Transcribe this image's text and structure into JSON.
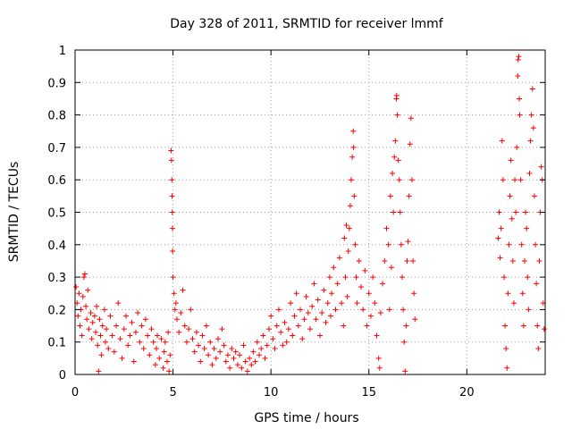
{
  "chart_data": {
    "type": "scatter",
    "title": "Day 328 of 2011, SRMTID for receiver lmmf",
    "xlabel": "GPS time / hours",
    "ylabel": "SRMTID / TECUs",
    "xlim": [
      0,
      24
    ],
    "ylim": [
      0,
      1
    ],
    "xticks": [
      0,
      5,
      10,
      15,
      20
    ],
    "xtick_labels": [
      "0",
      "5",
      "10",
      "15",
      "20"
    ],
    "yticks": [
      0,
      0.1,
      0.2,
      0.3,
      0.4,
      0.5,
      0.6,
      0.7,
      0.8,
      0.9,
      1
    ],
    "ytick_labels": [
      "0",
      "0.1",
      "0.2",
      "0.3",
      "0.4",
      "0.5",
      "0.6",
      "0.7",
      "0.8",
      "0.9",
      "1"
    ],
    "grid": true,
    "marker": "+",
    "color": "#ff0000",
    "series": [
      {
        "name": "SRMTID",
        "points": [
          [
            0.05,
            0.27
          ],
          [
            0.1,
            0.22
          ],
          [
            0.15,
            0.18
          ],
          [
            0.2,
            0.25
          ],
          [
            0.25,
            0.15
          ],
          [
            0.3,
            0.2
          ],
          [
            0.35,
            0.12
          ],
          [
            0.4,
            0.24
          ],
          [
            0.45,
            0.3
          ],
          [
            0.5,
            0.31
          ],
          [
            0.55,
            0.21
          ],
          [
            0.6,
            0.17
          ],
          [
            0.65,
            0.26
          ],
          [
            0.7,
            0.14
          ],
          [
            0.8,
            0.19
          ],
          [
            0.85,
            0.11
          ],
          [
            0.9,
            0.16
          ],
          [
            1.0,
            0.18
          ],
          [
            1.05,
            0.13
          ],
          [
            1.1,
            0.21
          ],
          [
            1.15,
            0.09
          ],
          [
            1.2,
            0.01
          ],
          [
            1.25,
            0.17
          ],
          [
            1.3,
            0.12
          ],
          [
            1.35,
            0.06
          ],
          [
            1.4,
            0.15
          ],
          [
            1.5,
            0.2
          ],
          [
            1.55,
            0.1
          ],
          [
            1.6,
            0.14
          ],
          [
            1.7,
            0.08
          ],
          [
            1.8,
            0.18
          ],
          [
            1.9,
            0.12
          ],
          [
            2.0,
            0.07
          ],
          [
            2.1,
            0.15
          ],
          [
            2.2,
            0.22
          ],
          [
            2.3,
            0.11
          ],
          [
            2.4,
            0.05
          ],
          [
            2.5,
            0.14
          ],
          [
            2.6,
            0.18
          ],
          [
            2.7,
            0.09
          ],
          [
            2.8,
            0.12
          ],
          [
            2.9,
            0.16
          ],
          [
            3.0,
            0.04
          ],
          [
            3.1,
            0.13
          ],
          [
            3.2,
            0.19
          ],
          [
            3.3,
            0.1
          ],
          [
            3.4,
            0.15
          ],
          [
            3.5,
            0.08
          ],
          [
            3.6,
            0.17
          ],
          [
            3.7,
            0.12
          ],
          [
            3.8,
            0.06
          ],
          [
            3.9,
            0.14
          ],
          [
            4.0,
            0.1
          ],
          [
            4.1,
            0.03
          ],
          [
            4.15,
            0.08
          ],
          [
            4.2,
            0.12
          ],
          [
            4.3,
            0.05
          ],
          [
            4.4,
            0.11
          ],
          [
            4.5,
            0.02
          ],
          [
            4.55,
            0.07
          ],
          [
            4.6,
            0.1
          ],
          [
            4.7,
            0.04
          ],
          [
            4.75,
            0.13
          ],
          [
            4.8,
            0.01
          ],
          [
            4.85,
            0.06
          ],
          [
            4.9,
            0.69
          ],
          [
            4.92,
            0.66
          ],
          [
            4.94,
            0.6
          ],
          [
            4.95,
            0.55
          ],
          [
            4.96,
            0.5
          ],
          [
            4.97,
            0.45
          ],
          [
            4.98,
            0.38
          ],
          [
            5.0,
            0.3
          ],
          [
            5.05,
            0.25
          ],
          [
            5.1,
            0.2
          ],
          [
            5.15,
            0.22
          ],
          [
            5.2,
            0.17
          ],
          [
            5.3,
            0.13
          ],
          [
            5.4,
            0.19
          ],
          [
            5.5,
            0.26
          ],
          [
            5.6,
            0.15
          ],
          [
            5.7,
            0.1
          ],
          [
            5.8,
            0.14
          ],
          [
            5.9,
            0.2
          ],
          [
            6.0,
            0.11
          ],
          [
            6.1,
            0.07
          ],
          [
            6.2,
            0.13
          ],
          [
            6.3,
            0.09
          ],
          [
            6.4,
            0.04
          ],
          [
            6.5,
            0.12
          ],
          [
            6.6,
            0.08
          ],
          [
            6.7,
            0.15
          ],
          [
            6.8,
            0.06
          ],
          [
            6.9,
            0.1
          ],
          [
            7.0,
            0.03
          ],
          [
            7.1,
            0.08
          ],
          [
            7.2,
            0.05
          ],
          [
            7.3,
            0.11
          ],
          [
            7.4,
            0.07
          ],
          [
            7.5,
            0.14
          ],
          [
            7.6,
            0.09
          ],
          [
            7.7,
            0.04
          ],
          [
            7.8,
            0.06
          ],
          [
            7.9,
            0.02
          ],
          [
            8.0,
            0.08
          ],
          [
            8.1,
            0.05
          ],
          [
            8.2,
            0.07
          ],
          [
            8.3,
            0.03
          ],
          [
            8.4,
            0.06
          ],
          [
            8.5,
            0.02
          ],
          [
            8.6,
            0.09
          ],
          [
            8.7,
            0.04
          ],
          [
            8.8,
            0.01
          ],
          [
            8.9,
            0.05
          ],
          [
            9.0,
            0.03
          ],
          [
            9.1,
            0.07
          ],
          [
            9.2,
            0.04
          ],
          [
            9.3,
            0.1
          ],
          [
            9.4,
            0.06
          ],
          [
            9.5,
            0.08
          ],
          [
            9.6,
            0.12
          ],
          [
            9.7,
            0.05
          ],
          [
            9.8,
            0.09
          ],
          [
            9.9,
            0.14
          ],
          [
            10.0,
            0.18
          ],
          [
            10.1,
            0.11
          ],
          [
            10.2,
            0.08
          ],
          [
            10.3,
            0.15
          ],
          [
            10.4,
            0.2
          ],
          [
            10.5,
            0.13
          ],
          [
            10.6,
            0.09
          ],
          [
            10.7,
            0.16
          ],
          [
            10.8,
            0.1
          ],
          [
            10.9,
            0.14
          ],
          [
            11.0,
            0.22
          ],
          [
            11.1,
            0.12
          ],
          [
            11.2,
            0.18
          ],
          [
            11.3,
            0.25
          ],
          [
            11.4,
            0.15
          ],
          [
            11.5,
            0.2
          ],
          [
            11.6,
            0.11
          ],
          [
            11.7,
            0.17
          ],
          [
            11.8,
            0.24
          ],
          [
            11.9,
            0.19
          ],
          [
            12.0,
            0.14
          ],
          [
            12.1,
            0.21
          ],
          [
            12.2,
            0.28
          ],
          [
            12.3,
            0.17
          ],
          [
            12.4,
            0.23
          ],
          [
            12.5,
            0.12
          ],
          [
            12.6,
            0.19
          ],
          [
            12.7,
            0.26
          ],
          [
            12.8,
            0.16
          ],
          [
            12.9,
            0.22
          ],
          [
            13.0,
            0.3
          ],
          [
            13.05,
            0.18
          ],
          [
            13.1,
            0.25
          ],
          [
            13.2,
            0.33
          ],
          [
            13.3,
            0.2
          ],
          [
            13.4,
            0.28
          ],
          [
            13.5,
            0.36
          ],
          [
            13.6,
            0.22
          ],
          [
            13.7,
            0.15
          ],
          [
            13.75,
            0.42
          ],
          [
            13.8,
            0.3
          ],
          [
            13.85,
            0.46
          ],
          [
            13.9,
            0.24
          ],
          [
            13.95,
            0.38
          ],
          [
            14.0,
            0.45
          ],
          [
            14.05,
            0.52
          ],
          [
            14.1,
            0.6
          ],
          [
            14.15,
            0.67
          ],
          [
            14.2,
            0.75
          ],
          [
            14.22,
            0.7
          ],
          [
            14.25,
            0.55
          ],
          [
            14.3,
            0.4
          ],
          [
            14.35,
            0.3
          ],
          [
            14.4,
            0.22
          ],
          [
            14.5,
            0.35
          ],
          [
            14.6,
            0.27
          ],
          [
            14.7,
            0.2
          ],
          [
            14.8,
            0.32
          ],
          [
            14.9,
            0.15
          ],
          [
            15.0,
            0.25
          ],
          [
            15.1,
            0.18
          ],
          [
            15.2,
            0.3
          ],
          [
            15.3,
            0.22
          ],
          [
            15.4,
            0.12
          ],
          [
            15.5,
            0.05
          ],
          [
            15.55,
            0.02
          ],
          [
            15.6,
            0.19
          ],
          [
            15.7,
            0.28
          ],
          [
            15.8,
            0.35
          ],
          [
            15.9,
            0.45
          ],
          [
            16.0,
            0.4
          ],
          [
            16.05,
            0.2
          ],
          [
            16.1,
            0.55
          ],
          [
            16.15,
            0.33
          ],
          [
            16.2,
            0.62
          ],
          [
            16.25,
            0.5
          ],
          [
            16.3,
            0.67
          ],
          [
            16.35,
            0.72
          ],
          [
            16.4,
            0.85
          ],
          [
            16.42,
            0.86
          ],
          [
            16.45,
            0.8
          ],
          [
            16.5,
            0.66
          ],
          [
            16.55,
            0.6
          ],
          [
            16.6,
            0.5
          ],
          [
            16.65,
            0.4
          ],
          [
            16.7,
            0.3
          ],
          [
            16.75,
            0.2
          ],
          [
            16.8,
            0.1
          ],
          [
            16.85,
            0.01
          ],
          [
            16.9,
            0.15
          ],
          [
            16.95,
            0.35
          ],
          [
            17.0,
            0.41
          ],
          [
            17.05,
            0.55
          ],
          [
            17.1,
            0.71
          ],
          [
            17.15,
            0.79
          ],
          [
            17.2,
            0.6
          ],
          [
            17.25,
            0.35
          ],
          [
            17.3,
            0.25
          ],
          [
            17.35,
            0.17
          ],
          [
            21.6,
            0.42
          ],
          [
            21.65,
            0.5
          ],
          [
            21.7,
            0.36
          ],
          [
            21.75,
            0.45
          ],
          [
            21.8,
            0.72
          ],
          [
            21.85,
            0.6
          ],
          [
            21.9,
            0.3
          ],
          [
            21.95,
            0.15
          ],
          [
            22.0,
            0.08
          ],
          [
            22.05,
            0.02
          ],
          [
            22.1,
            0.25
          ],
          [
            22.15,
            0.4
          ],
          [
            22.2,
            0.55
          ],
          [
            22.25,
            0.66
          ],
          [
            22.3,
            0.48
          ],
          [
            22.35,
            0.35
          ],
          [
            22.4,
            0.22
          ],
          [
            22.45,
            0.6
          ],
          [
            22.5,
            0.5
          ],
          [
            22.55,
            0.7
          ],
          [
            22.6,
            0.92
          ],
          [
            22.62,
            0.97
          ],
          [
            22.65,
            0.98
          ],
          [
            22.68,
            0.85
          ],
          [
            22.7,
            0.8
          ],
          [
            22.75,
            0.6
          ],
          [
            22.8,
            0.4
          ],
          [
            22.85,
            0.25
          ],
          [
            22.9,
            0.15
          ],
          [
            22.95,
            0.35
          ],
          [
            23.0,
            0.5
          ],
          [
            23.05,
            0.45
          ],
          [
            23.1,
            0.3
          ],
          [
            23.15,
            0.2
          ],
          [
            23.2,
            0.62
          ],
          [
            23.25,
            0.72
          ],
          [
            23.3,
            0.8
          ],
          [
            23.35,
            0.88
          ],
          [
            23.4,
            0.76
          ],
          [
            23.45,
            0.55
          ],
          [
            23.5,
            0.4
          ],
          [
            23.55,
            0.28
          ],
          [
            23.6,
            0.15
          ],
          [
            23.65,
            0.08
          ],
          [
            23.7,
            0.35
          ],
          [
            23.75,
            0.5
          ],
          [
            23.8,
            0.64
          ],
          [
            23.85,
            0.6
          ],
          [
            23.9,
            0.22
          ],
          [
            23.95,
            0.14
          ]
        ]
      }
    ]
  }
}
